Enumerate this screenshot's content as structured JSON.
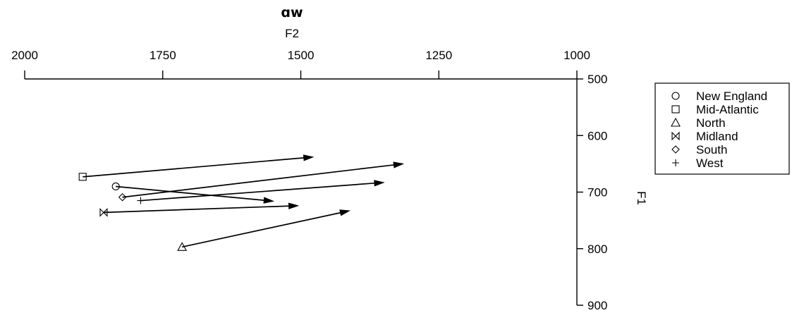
{
  "chart_data": {
    "type": "scatter",
    "title": "ɑw",
    "xlabel": "F2",
    "ylabel": "F1",
    "x_axis": {
      "position": "top",
      "reversed": true,
      "lim": [
        2000,
        1000
      ],
      "ticks": [
        2000,
        1750,
        1500,
        1250,
        1000
      ]
    },
    "y_axis": {
      "position": "right",
      "reversed": true,
      "lim": [
        500,
        900
      ],
      "ticks": [
        500,
        600,
        700,
        800,
        900
      ]
    },
    "grid": false,
    "legend": {
      "placement": "right",
      "entries": [
        {
          "label": "New England",
          "marker": "circle"
        },
        {
          "label": "Mid-Atlantic",
          "marker": "square"
        },
        {
          "label": "North",
          "marker": "triangle"
        },
        {
          "label": "Midland",
          "marker": "bowtie"
        },
        {
          "label": "South",
          "marker": "diamond"
        },
        {
          "label": "West",
          "marker": "plus"
        }
      ]
    },
    "series": [
      {
        "name": "New England",
        "marker": "circle",
        "start": {
          "F2": 1835,
          "F1": 690
        },
        "end": {
          "F2": 1550,
          "F1": 716
        }
      },
      {
        "name": "Mid-Atlantic",
        "marker": "square",
        "start": {
          "F2": 1895,
          "F1": 673
        },
        "end": {
          "F2": 1478,
          "F1": 638
        }
      },
      {
        "name": "North",
        "marker": "triangle",
        "start": {
          "F2": 1715,
          "F1": 797
        },
        "end": {
          "F2": 1412,
          "F1": 733
        }
      },
      {
        "name": "Midland",
        "marker": "bowtie",
        "start": {
          "F2": 1857,
          "F1": 736
        },
        "end": {
          "F2": 1505,
          "F1": 724
        }
      },
      {
        "name": "South",
        "marker": "diamond",
        "start": {
          "F2": 1823,
          "F1": 709
        },
        "end": {
          "F2": 1315,
          "F1": 650
        }
      },
      {
        "name": "West",
        "marker": "plus",
        "start": {
          "F2": 1790,
          "F1": 715
        },
        "end": {
          "F2": 1350,
          "F1": 683
        }
      }
    ]
  }
}
